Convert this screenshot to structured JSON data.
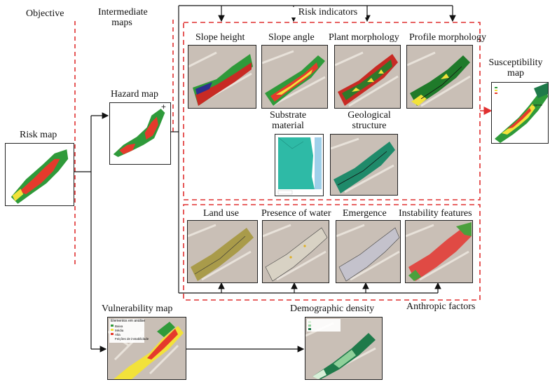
{
  "headings": {
    "objective": "Objective",
    "intermediate": "Intermediate maps",
    "risk_indicators": "Risk indicators",
    "anthropic_factors": "Anthropic factors"
  },
  "maps": {
    "risk": "Risk map",
    "hazard": "Hazard map",
    "vulnerability": "Vulnerability map",
    "susceptibility": "Susceptibility map",
    "slope_height": "Slope height",
    "slope_angle": "Slope angle",
    "plant_morphology": "Plant morphology",
    "profile_morphology": "Profile morphology",
    "substrate_material": "Substrate material",
    "geological_structure": "Geological structure",
    "land_use": "Land use",
    "presence_of_water": "Presence of water",
    "emergence": "Emergence",
    "instability_features": "Instability features",
    "demographic_density": "Demographic density"
  },
  "legend": {
    "vulnerability_title": "Elementos em análise",
    "vulnerability_items": [
      "Baixa",
      "Média",
      "Alta",
      "Feições de instabilidade"
    ],
    "susceptibility_title": "Legenda"
  },
  "colors": {
    "connector": "#111111",
    "dashed_box": "#e03030",
    "risk_high": "#e53a2c",
    "moderate": "#f2e23a",
    "low": "#2f9a3a",
    "dark_green": "#1f7a4a"
  }
}
